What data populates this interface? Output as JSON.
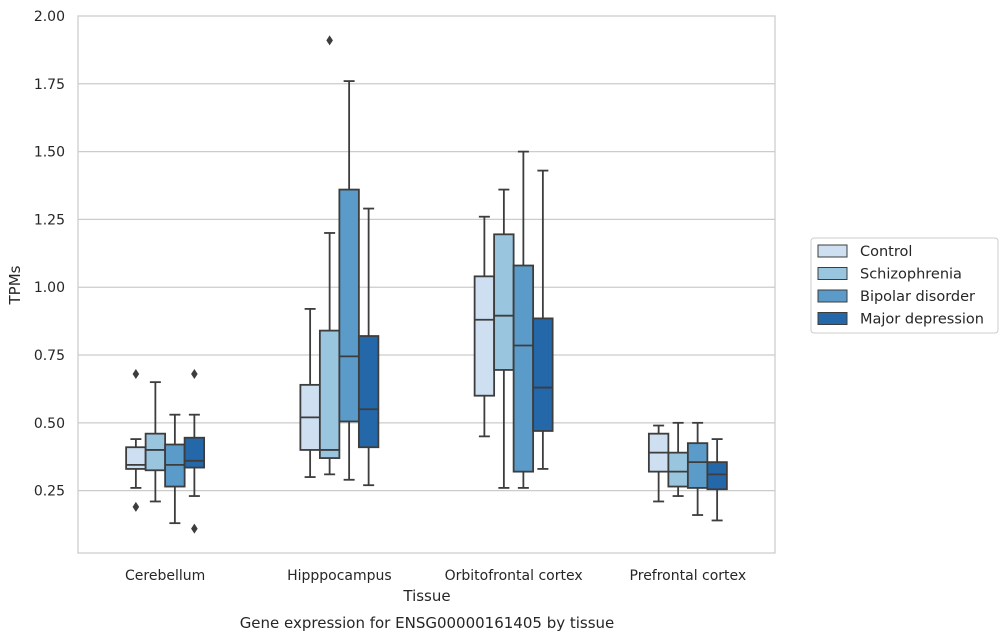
{
  "chart_data": {
    "type": "box",
    "title": "",
    "caption": "Gene expression for ENSG00000161405 by tissue",
    "xlabel": "Tissue",
    "ylabel": "TPMs",
    "ylim": [
      0.02,
      2.0
    ],
    "yticks": [
      "0.25",
      "0.50",
      "0.75",
      "1.00",
      "1.25",
      "1.50",
      "1.75",
      "2.00"
    ],
    "grid": "horizontal",
    "legend_position": "right",
    "categories": [
      "Cerebellum",
      "Hipppocampus",
      "Orbitofrontal cortex",
      "Prefrontal cortex"
    ],
    "series": [
      {
        "name": "Control",
        "color": "#cddff0",
        "boxes": [
          {
            "whislo": 0.26,
            "q1": 0.33,
            "med": 0.345,
            "q3": 0.41,
            "whishi": 0.44,
            "fliers": [
              0.19,
              0.68
            ]
          },
          {
            "whislo": 0.3,
            "q1": 0.4,
            "med": 0.52,
            "q3": 0.64,
            "whishi": 0.92,
            "fliers": []
          },
          {
            "whislo": 0.45,
            "q1": 0.6,
            "med": 0.88,
            "q3": 1.04,
            "whishi": 1.26,
            "fliers": []
          },
          {
            "whislo": 0.21,
            "q1": 0.32,
            "med": 0.39,
            "q3": 0.46,
            "whishi": 0.49,
            "fliers": []
          }
        ]
      },
      {
        "name": "Schizophrenia",
        "color": "#9ac5df",
        "boxes": [
          {
            "whislo": 0.21,
            "q1": 0.325,
            "med": 0.4,
            "q3": 0.46,
            "whishi": 0.65,
            "fliers": []
          },
          {
            "whislo": 0.31,
            "q1": 0.37,
            "med": 0.4,
            "q3": 0.84,
            "whishi": 1.2,
            "fliers": [
              1.91
            ]
          },
          {
            "whislo": 0.26,
            "q1": 0.695,
            "med": 0.895,
            "q3": 1.195,
            "whishi": 1.36,
            "fliers": []
          },
          {
            "whislo": 0.23,
            "q1": 0.265,
            "med": 0.32,
            "q3": 0.39,
            "whishi": 0.5,
            "fliers": []
          }
        ]
      },
      {
        "name": "Bipolar disorder",
        "color": "#5b9bc9",
        "boxes": [
          {
            "whislo": 0.13,
            "q1": 0.265,
            "med": 0.345,
            "q3": 0.42,
            "whishi": 0.53,
            "fliers": []
          },
          {
            "whislo": 0.29,
            "q1": 0.505,
            "med": 0.745,
            "q3": 1.36,
            "whishi": 1.76,
            "fliers": []
          },
          {
            "whislo": 0.26,
            "q1": 0.32,
            "med": 0.785,
            "q3": 1.08,
            "whishi": 1.5,
            "fliers": []
          },
          {
            "whislo": 0.16,
            "q1": 0.26,
            "med": 0.355,
            "q3": 0.425,
            "whishi": 0.5,
            "fliers": []
          }
        ]
      },
      {
        "name": "Major depression",
        "color": "#2468aa",
        "boxes": [
          {
            "whislo": 0.23,
            "q1": 0.335,
            "med": 0.36,
            "q3": 0.445,
            "whishi": 0.53,
            "fliers": [
              0.11,
              0.68
            ]
          },
          {
            "whislo": 0.27,
            "q1": 0.41,
            "med": 0.55,
            "q3": 0.82,
            "whishi": 1.29,
            "fliers": []
          },
          {
            "whislo": 0.33,
            "q1": 0.47,
            "med": 0.63,
            "q3": 0.885,
            "whishi": 1.43,
            "fliers": []
          },
          {
            "whislo": 0.14,
            "q1": 0.255,
            "med": 0.31,
            "q3": 0.355,
            "whishi": 0.44,
            "fliers": []
          }
        ]
      }
    ]
  }
}
